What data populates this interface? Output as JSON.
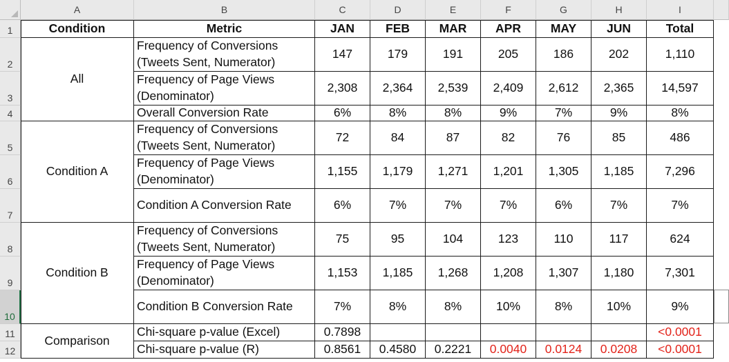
{
  "columns": [
    "A",
    "B",
    "C",
    "D",
    "E",
    "F",
    "G",
    "H",
    "I"
  ],
  "rows": [
    "1",
    "2",
    "3",
    "4",
    "5",
    "6",
    "7",
    "8",
    "9",
    "10",
    "11",
    "12"
  ],
  "header": {
    "condition": "Condition",
    "metric": "Metric",
    "months": [
      "JAN",
      "FEB",
      "MAR",
      "APR",
      "MAY",
      "JUN"
    ],
    "total": "Total"
  },
  "groups": [
    {
      "label": "All",
      "rows": [
        {
          "metric": "Frequency of Conversions (Tweets Sent, Numerator)",
          "values": [
            "147",
            "179",
            "191",
            "205",
            "186",
            "202"
          ],
          "total": "1,110"
        },
        {
          "metric": "Frequency of Page Views (Denominator)",
          "values": [
            "2,308",
            "2,364",
            "2,539",
            "2,409",
            "2,612",
            "2,365"
          ],
          "total": "14,597"
        },
        {
          "metric": "Overall Conversion Rate",
          "values": [
            "6%",
            "8%",
            "8%",
            "9%",
            "7%",
            "9%"
          ],
          "total": "8%"
        }
      ]
    },
    {
      "label": "Condition A",
      "rows": [
        {
          "metric": "Frequency of Conversions (Tweets Sent, Numerator)",
          "values": [
            "72",
            "84",
            "87",
            "82",
            "76",
            "85"
          ],
          "total": "486"
        },
        {
          "metric": "Frequency of Page Views (Denominator)",
          "values": [
            "1,155",
            "1,179",
            "1,271",
            "1,201",
            "1,305",
            "1,185"
          ],
          "total": "7,296"
        },
        {
          "metric": "Condition A Conversion Rate",
          "values": [
            "6%",
            "7%",
            "7%",
            "7%",
            "6%",
            "7%"
          ],
          "total": "7%"
        }
      ]
    },
    {
      "label": "Condition B",
      "rows": [
        {
          "metric": "Frequency of Conversions (Tweets Sent, Numerator)",
          "values": [
            "75",
            "95",
            "104",
            "123",
            "110",
            "117"
          ],
          "total": "624"
        },
        {
          "metric": "Frequency of Page Views (Denominator)",
          "values": [
            "1,153",
            "1,185",
            "1,268",
            "1,208",
            "1,307",
            "1,180"
          ],
          "total": "7,301"
        },
        {
          "metric": "Condition B Conversion Rate",
          "values": [
            "7%",
            "8%",
            "8%",
            "10%",
            "8%",
            "10%"
          ],
          "total": "9%"
        }
      ]
    },
    {
      "label": "Comparison",
      "rows": [
        {
          "metric": "Chi-square p-value (Excel)",
          "values": [
            "0.7898",
            "",
            "",
            "",
            "",
            ""
          ],
          "total": "<0.0001"
        },
        {
          "metric": "Chi-square p-value (R)",
          "values": [
            "0.8561",
            "0.4580",
            "0.2221",
            "0.0040",
            "0.0124",
            "0.0208"
          ],
          "total": "<0.0001"
        }
      ]
    }
  ],
  "highlight_color": "#e2231a",
  "red_cells": {
    "row11": [
      false,
      false,
      false,
      false,
      false,
      false,
      true
    ],
    "row12": [
      false,
      false,
      false,
      true,
      true,
      true,
      true
    ]
  }
}
